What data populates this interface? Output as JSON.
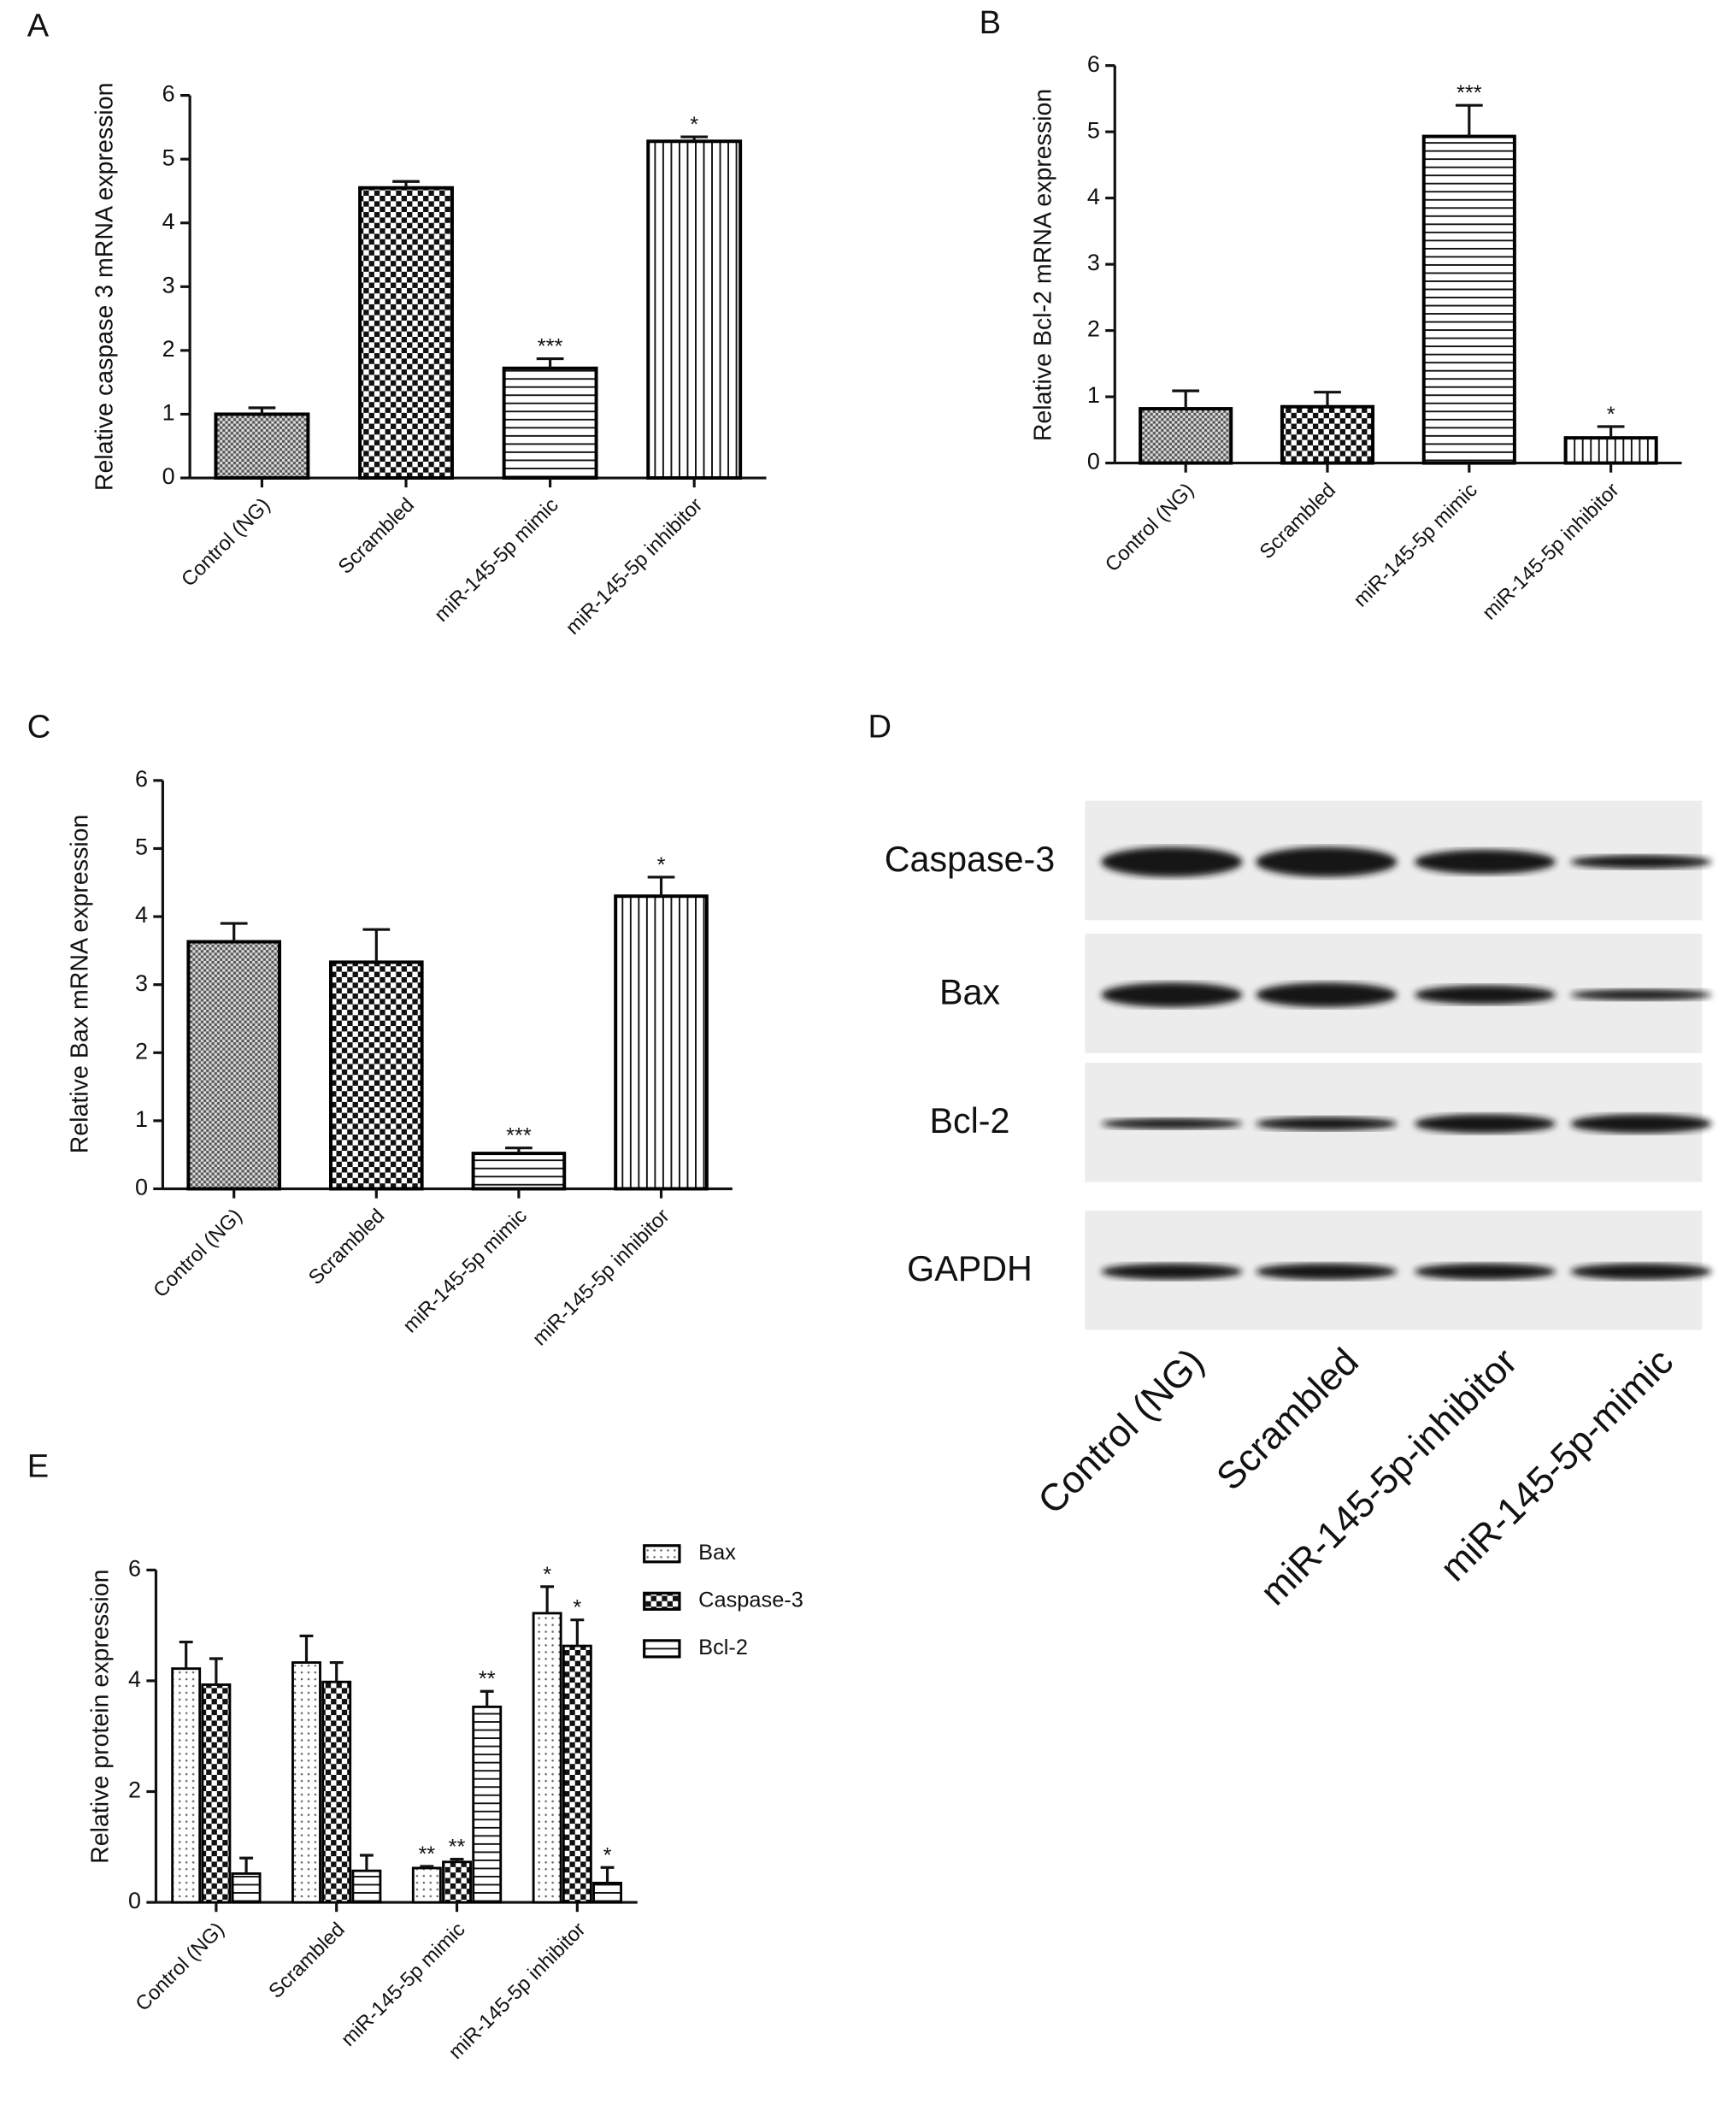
{
  "chart_data": [
    {
      "type": "bar",
      "panel": "A",
      "ylabel": "Relative caspase 3 mRNA expression",
      "categories": [
        "Control (NG)",
        "Scrambled",
        "miR-145-5p mimic",
        "miR-145-5p inhibitor"
      ],
      "values": [
        1.0,
        4.55,
        1.72,
        5.28
      ],
      "errors": [
        0.1,
        0.1,
        0.15,
        0.07
      ],
      "annotations": [
        null,
        null,
        "***",
        "*"
      ],
      "patterns": [
        "fine-check",
        "check",
        "hlines",
        "vlines"
      ],
      "color": "#000000",
      "ylim": [
        0,
        6
      ],
      "yticks": [
        0,
        1,
        2,
        3,
        4,
        5,
        6
      ]
    },
    {
      "type": "bar",
      "panel": "B",
      "ylabel": "Relative Bcl-2 mRNA expression",
      "categories": [
        "Control (NG)",
        "Scrambled",
        "miR-145-5p mimic",
        "miR-145-5p inhibitor"
      ],
      "values": [
        0.82,
        0.85,
        4.93,
        0.38
      ],
      "errors": [
        0.27,
        0.22,
        0.47,
        0.17
      ],
      "annotations": [
        null,
        null,
        "***",
        "*"
      ],
      "patterns": [
        "fine-check",
        "check",
        "hlines",
        "vlines"
      ],
      "color": "#000000",
      "ylim": [
        0,
        6
      ],
      "yticks": [
        0,
        1,
        2,
        3,
        4,
        5,
        6
      ]
    },
    {
      "type": "bar",
      "panel": "C",
      "ylabel": "Relative Bax mRNA expression",
      "categories": [
        "Control (NG)",
        "Scrambled",
        "miR-145-5p mimic",
        "miR-145-5p inhibitor"
      ],
      "values": [
        3.63,
        3.33,
        0.52,
        4.3
      ],
      "errors": [
        0.27,
        0.48,
        0.08,
        0.28
      ],
      "annotations": [
        null,
        null,
        "***",
        "*"
      ],
      "patterns": [
        "fine-check",
        "check",
        "hlines",
        "vlines"
      ],
      "color": "#000000",
      "ylim": [
        0,
        6
      ],
      "yticks": [
        0,
        1,
        2,
        3,
        4,
        5,
        6
      ]
    },
    {
      "type": "blot",
      "panel": "D",
      "rows": [
        "Caspase-3",
        "Bax",
        "Bcl-2",
        "GAPDH"
      ],
      "columns": [
        "Control (NG)",
        "Scrambled",
        "miR-145-5p-inhibitor",
        "miR-145-5p-mimic"
      ]
    },
    {
      "type": "grouped-bar",
      "panel": "E",
      "ylabel": "Relative protein expression",
      "categories": [
        "Control (NG)",
        "Scrambled",
        "miR-145-5p mimic",
        "miR-145-5p inhibitor"
      ],
      "series": [
        {
          "name": "Bax",
          "pattern": "dots",
          "color": "#000000",
          "values": [
            4.22,
            4.33,
            0.62,
            5.22
          ],
          "errors": [
            0.48,
            0.48,
            0.03,
            0.48
          ],
          "annotations": [
            null,
            null,
            "**",
            "*"
          ]
        },
        {
          "name": "Caspase-3",
          "pattern": "check",
          "color": "#000000",
          "values": [
            3.93,
            3.98,
            0.73,
            4.63
          ],
          "errors": [
            0.47,
            0.35,
            0.05,
            0.47
          ],
          "annotations": [
            null,
            null,
            "**",
            "*"
          ]
        },
        {
          "name": "Bcl-2",
          "pattern": "hlines",
          "color": "#000000",
          "values": [
            0.52,
            0.57,
            3.53,
            0.35
          ],
          "errors": [
            0.28,
            0.28,
            0.28,
            0.28
          ],
          "annotations": [
            null,
            null,
            "**",
            "*"
          ]
        }
      ],
      "ylim": [
        0,
        6
      ],
      "yticks": [
        0,
        2,
        4,
        6
      ]
    }
  ]
}
